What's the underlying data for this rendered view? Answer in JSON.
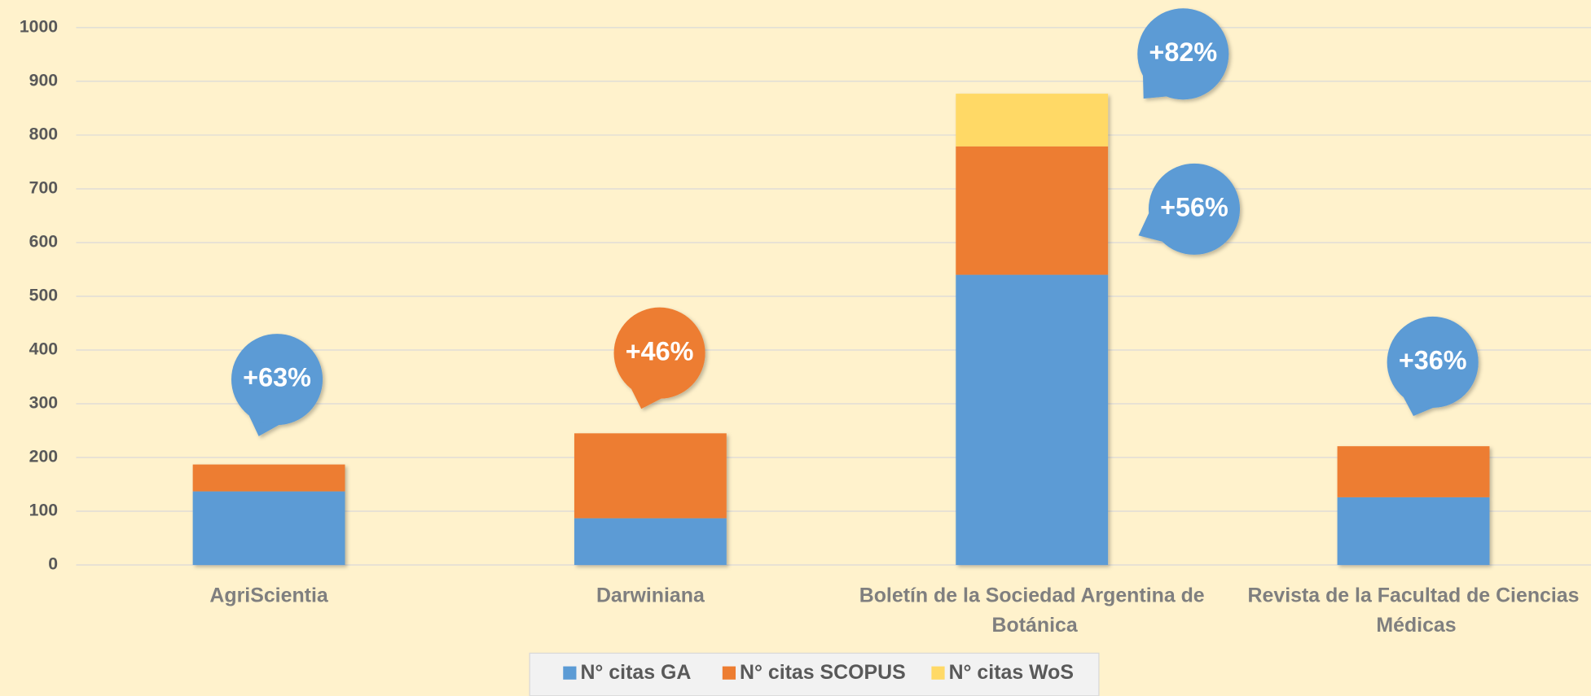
{
  "chart_data": {
    "type": "stacked_bar",
    "categories": [
      "AgriScientia",
      "Darwiniana",
      "Boletín de la Sociedad Argentina de Botánica",
      "Revista de la Facultad de Ciencias Médicas"
    ],
    "series": [
      {
        "name": "N° citas GA",
        "color": "#5b9bd5",
        "values": [
          137,
          87,
          540,
          126
        ]
      },
      {
        "name": "N° citas SCOPUS",
        "color": "#ed7d31",
        "values": [
          50,
          158,
          239,
          95
        ]
      },
      {
        "name": "N° citas WoS",
        "color": "#ffd966",
        "values": [
          0,
          0,
          98,
          0
        ]
      }
    ],
    "ylim": [
      0,
      1000
    ],
    "yticks": [
      0,
      100,
      200,
      300,
      400,
      500,
      600,
      700,
      800,
      900,
      1000
    ],
    "grid": true,
    "legend": "bottom",
    "annotations": [
      {
        "text": "+63%",
        "color": "#5b9bd5"
      },
      {
        "text": "+46%",
        "color": "#ed7d31"
      },
      {
        "text": "+82%",
        "color": "#5b9bd5"
      },
      {
        "text": "+56%",
        "color": "#5b9bd5"
      },
      {
        "text": "+36%",
        "color": "#5b9bd5"
      }
    ]
  }
}
